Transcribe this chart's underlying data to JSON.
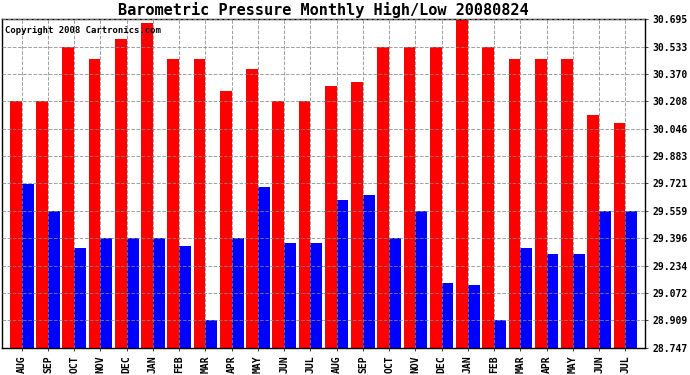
{
  "title": "Barometric Pressure Monthly High/Low 20080824",
  "copyright": "Copyright 2008 Cartronics.com",
  "months": [
    "AUG",
    "SEP",
    "OCT",
    "NOV",
    "DEC",
    "JAN",
    "FEB",
    "MAR",
    "APR",
    "MAY",
    "JUN",
    "JUL",
    "AUG",
    "SEP",
    "OCT",
    "NOV",
    "DEC",
    "JAN",
    "FEB",
    "MAR",
    "APR",
    "MAY",
    "JUN",
    "JUL"
  ],
  "highs": [
    30.21,
    30.21,
    30.53,
    30.46,
    30.58,
    30.67,
    30.46,
    30.46,
    30.27,
    30.4,
    30.21,
    30.21,
    30.3,
    30.32,
    30.53,
    30.53,
    30.53,
    30.72,
    30.53,
    30.46,
    30.46,
    30.46,
    30.13,
    30.08
  ],
  "lows": [
    29.72,
    29.56,
    29.34,
    29.4,
    29.4,
    29.4,
    29.35,
    28.91,
    29.4,
    29.7,
    29.37,
    29.37,
    29.62,
    29.65,
    29.4,
    29.56,
    29.13,
    29.12,
    28.91,
    29.34,
    29.3,
    29.3,
    29.56,
    29.56
  ],
  "bar_width": 0.45,
  "ylim": [
    28.747,
    30.695
  ],
  "yticks": [
    28.747,
    28.909,
    29.072,
    29.234,
    29.396,
    29.559,
    29.721,
    29.883,
    30.046,
    30.208,
    30.37,
    30.533,
    30.695
  ],
  "high_color": "#ff0000",
  "low_color": "#0000ff",
  "bg_color": "#ffffff",
  "grid_color": "#888888",
  "title_fontsize": 11,
  "tick_fontsize": 7,
  "copyright_fontsize": 6.5
}
